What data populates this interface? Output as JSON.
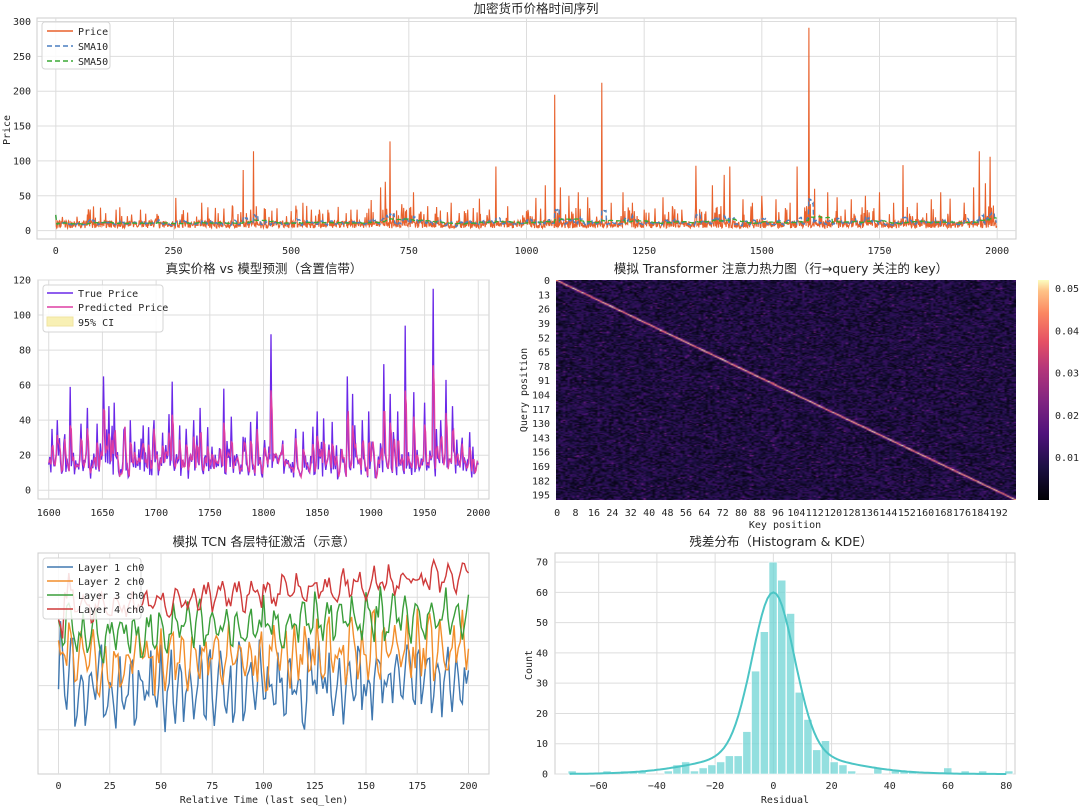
{
  "charts": {
    "price": {
      "title": "加密货币价格时间序列",
      "ylabel": "Price",
      "xticks": [
        "0",
        "250",
        "500",
        "750",
        "1000",
        "1250",
        "1500",
        "1750",
        "2000"
      ],
      "yticks": [
        "0",
        "50",
        "100",
        "150",
        "200",
        "250",
        "300"
      ],
      "legend": [
        "Price",
        "SMA10",
        "SMA50"
      ]
    },
    "pred": {
      "title": "真实价格 vs 模型预测（含置信带）",
      "xticks": [
        "1600",
        "1650",
        "1700",
        "1750",
        "1800",
        "1850",
        "1900",
        "1950",
        "2000"
      ],
      "yticks": [
        "0",
        "20",
        "40",
        "60",
        "80",
        "100",
        "120"
      ],
      "legend": [
        "True Price",
        "Predicted Price",
        "95% CI"
      ]
    },
    "attn": {
      "title": "模拟 Transformer 注意力热力图（行→query 关注的 key）",
      "xlabel": "Key position",
      "ylabel": "Query position",
      "xticks": [
        "0",
        "8",
        "16",
        "24",
        "32",
        "40",
        "48",
        "56",
        "64",
        "72",
        "80",
        "88",
        "96",
        "104",
        "112",
        "120",
        "128",
        "136",
        "144",
        "152",
        "160",
        "168",
        "176",
        "184",
        "192"
      ],
      "yticks": [
        "0",
        "13",
        "26",
        "39",
        "52",
        "65",
        "78",
        "91",
        "104",
        "117",
        "130",
        "143",
        "156",
        "169",
        "182",
        "195"
      ],
      "cbar_ticks": [
        "0.01",
        "0.02",
        "0.03",
        "0.04",
        "0.05"
      ]
    },
    "tcn": {
      "title": "模拟 TCN 各层特征激活（示意）",
      "xlabel": "Relative Time (last seq_len)",
      "xticks": [
        "0",
        "25",
        "50",
        "75",
        "100",
        "125",
        "150",
        "175",
        "200"
      ],
      "legend": [
        "Layer 1 ch0",
        "Layer 2 ch0",
        "Layer 3 ch0",
        "Layer 4 ch0"
      ]
    },
    "resid": {
      "title": "残差分布（Histogram & KDE）",
      "xlabel": "Residual",
      "ylabel": "Count",
      "xticks": [
        "−60",
        "−40",
        "−20",
        "0",
        "20",
        "40",
        "60",
        "80"
      ],
      "yticks": [
        "0",
        "10",
        "20",
        "30",
        "40",
        "50",
        "60",
        "70"
      ]
    }
  },
  "chart_data": [
    {
      "type": "line",
      "title": "加密货币价格时间序列",
      "ylabel": "Price",
      "xlim": [
        -40,
        2040
      ],
      "ylim": [
        -12,
        305
      ],
      "grid": true,
      "legend_position": "top-left",
      "series": [
        {
          "name": "Price",
          "color": "#e8612c",
          "style": "solid",
          "base": 9,
          "noise": 7,
          "spikes": [
            [
              22,
              14
            ],
            [
              45,
              20
            ],
            [
              70,
              26
            ],
            [
              95,
              33
            ],
            [
              128,
              30
            ],
            [
              140,
              21
            ],
            [
              180,
              30
            ],
            [
              215,
              24
            ],
            [
              255,
              47
            ],
            [
              280,
              26
            ],
            [
              310,
              40
            ],
            [
              345,
              25
            ],
            [
              375,
              36
            ],
            [
              398,
              87
            ],
            [
              420,
              114
            ],
            [
              445,
              31
            ],
            [
              470,
              32
            ],
            [
              500,
              28
            ],
            [
              525,
              40
            ],
            [
              560,
              30
            ],
            [
              580,
              26
            ],
            [
              600,
              34
            ],
            [
              640,
              30
            ],
            [
              670,
              44
            ],
            [
              690,
              62
            ],
            [
              700,
              70
            ],
            [
              710,
              128
            ],
            [
              735,
              38
            ],
            [
              760,
              55
            ],
            [
              790,
              35
            ],
            [
              840,
              40
            ],
            [
              875,
              30
            ],
            [
              900,
              46
            ],
            [
              935,
              92
            ],
            [
              960,
              35
            ],
            [
              1000,
              28
            ],
            [
              1020,
              47
            ],
            [
              1040,
              65
            ],
            [
              1060,
              195
            ],
            [
              1072,
              62
            ],
            [
              1090,
              50
            ],
            [
              1110,
              55
            ],
            [
              1130,
              48
            ],
            [
              1160,
              212
            ],
            [
              1180,
              40
            ],
            [
              1205,
              55
            ],
            [
              1225,
              40
            ],
            [
              1250,
              30
            ],
            [
              1290,
              48
            ],
            [
              1310,
              35
            ],
            [
              1330,
              30
            ],
            [
              1360,
              93
            ],
            [
              1395,
              65
            ],
            [
              1420,
              80
            ],
            [
              1432,
              92
            ],
            [
              1460,
              45
            ],
            [
              1480,
              40
            ],
            [
              1500,
              50
            ],
            [
              1530,
              45
            ],
            [
              1560,
              40
            ],
            [
              1575,
              92
            ],
            [
              1595,
              35
            ],
            [
              1600,
              291
            ],
            [
              1612,
              60
            ],
            [
              1640,
              55
            ],
            [
              1660,
              48
            ],
            [
              1690,
              45
            ],
            [
              1720,
              50
            ],
            [
              1750,
              55
            ],
            [
              1780,
              40
            ],
            [
              1800,
              94
            ],
            [
              1830,
              40
            ],
            [
              1860,
              45
            ],
            [
              1880,
              55
            ],
            [
              1900,
              46
            ],
            [
              1930,
              40
            ],
            [
              1950,
              62
            ],
            [
              1962,
              114
            ],
            [
              1975,
              68
            ],
            [
              1985,
              106
            ],
            [
              1992,
              36
            ]
          ]
        },
        {
          "name": "SMA10",
          "color": "#4a7fc1",
          "style": "dashed"
        },
        {
          "name": "SMA50",
          "color": "#3aa935",
          "style": "dashed"
        }
      ]
    },
    {
      "type": "line",
      "title": "真实价格 vs 模型预测（含置信带）",
      "xlim": [
        1590,
        2010
      ],
      "ylim": [
        -5,
        120
      ],
      "grid": true,
      "legend_position": "top-left",
      "series": [
        {
          "name": "True Price",
          "color": "#6a28e8",
          "base": 15,
          "noise": 6,
          "spikes": [
            [
              1603,
              35
            ],
            [
              1608,
              40
            ],
            [
              1615,
              32
            ],
            [
              1620,
              59
            ],
            [
              1630,
              38
            ],
            [
              1636,
              47
            ],
            [
              1645,
              38
            ],
            [
              1651,
              65
            ],
            [
              1656,
              48
            ],
            [
              1661,
              50
            ],
            [
              1671,
              36
            ],
            [
              1676,
              40
            ],
            [
              1693,
              36
            ],
            [
              1698,
              40
            ],
            [
              1715,
              62
            ],
            [
              1722,
              37
            ],
            [
              1735,
              40
            ],
            [
              1741,
              47
            ],
            [
              1748,
              36
            ],
            [
              1763,
              58
            ],
            [
              1770,
              42
            ],
            [
              1788,
              39
            ],
            [
              1794,
              45
            ],
            [
              1807,
              89
            ],
            [
              1830,
              35
            ],
            [
              1850,
              45
            ],
            [
              1856,
              41
            ],
            [
              1864,
              39
            ],
            [
              1878,
              65
            ],
            [
              1883,
              55
            ],
            [
              1892,
              40
            ],
            [
              1898,
              45
            ],
            [
              1912,
              72
            ],
            [
              1918,
              55
            ],
            [
              1925,
              45
            ],
            [
              1932,
              94
            ],
            [
              1940,
              56
            ],
            [
              1950,
              50
            ],
            [
              1958,
              115
            ],
            [
              1965,
              40
            ],
            [
              1970,
              63
            ],
            [
              1976,
              48
            ],
            [
              1985,
              30
            ]
          ]
        },
        {
          "name": "Predicted Price",
          "color": "#de3ea3"
        },
        {
          "name": "95% CI",
          "color": "#f8f0b4"
        }
      ]
    },
    {
      "type": "heatmap",
      "title": "模拟 Transformer 注意力热力图（行→query 关注的 key）",
      "xlabel": "Key position",
      "ylabel": "Query position",
      "rows": 200,
      "cols": 200,
      "colormap": "magma",
      "value_range": [
        0.0,
        0.05
      ],
      "diagonal": 0.05,
      "background": 0.007
    },
    {
      "type": "line",
      "title": "模拟 TCN 各层特征激活（示意）",
      "xlabel": "Relative Time (last seq_len)",
      "xlim": [
        -10,
        210
      ],
      "grid": true,
      "legend_position": "top-left",
      "series": [
        {
          "name": "Layer 1 ch0",
          "color": "#4078b0",
          "base": 0.38,
          "amp": 0.16,
          "trend": 0.04
        },
        {
          "name": "Layer 2 ch0",
          "color": "#f28e2b",
          "base": 0.5,
          "amp": 0.14,
          "trend": 0.08
        },
        {
          "name": "Layer 3 ch0",
          "color": "#3a9e3a",
          "base": 0.62,
          "amp": 0.1,
          "trend": 0.12
        },
        {
          "name": "Layer 4 ch0",
          "color": "#cf3a3a",
          "base": 0.74,
          "amp": 0.06,
          "trend": 0.16
        }
      ]
    },
    {
      "type": "bar",
      "title": "残差分布（Histogram & KDE）",
      "xlabel": "Residual",
      "ylabel": "Count",
      "xlim": [
        -75,
        83
      ],
      "ylim": [
        0,
        73
      ],
      "bin_width": 3.0,
      "bin_start": -70.5,
      "values": [
        1,
        0,
        0,
        0,
        1,
        0,
        1,
        1,
        1,
        0,
        0,
        1,
        3,
        4,
        1,
        2,
        3,
        4,
        6,
        6,
        14,
        34,
        47,
        70,
        64,
        53,
        27,
        18,
        8,
        11,
        4,
        3,
        1,
        0,
        0,
        2,
        0,
        1,
        1,
        1,
        0,
        0,
        0,
        2,
        0,
        1,
        0,
        1,
        0,
        0,
        1
      ],
      "color": "#6fd4d4",
      "kde_color": "#4cc5c5",
      "kde_peak": 60
    }
  ]
}
